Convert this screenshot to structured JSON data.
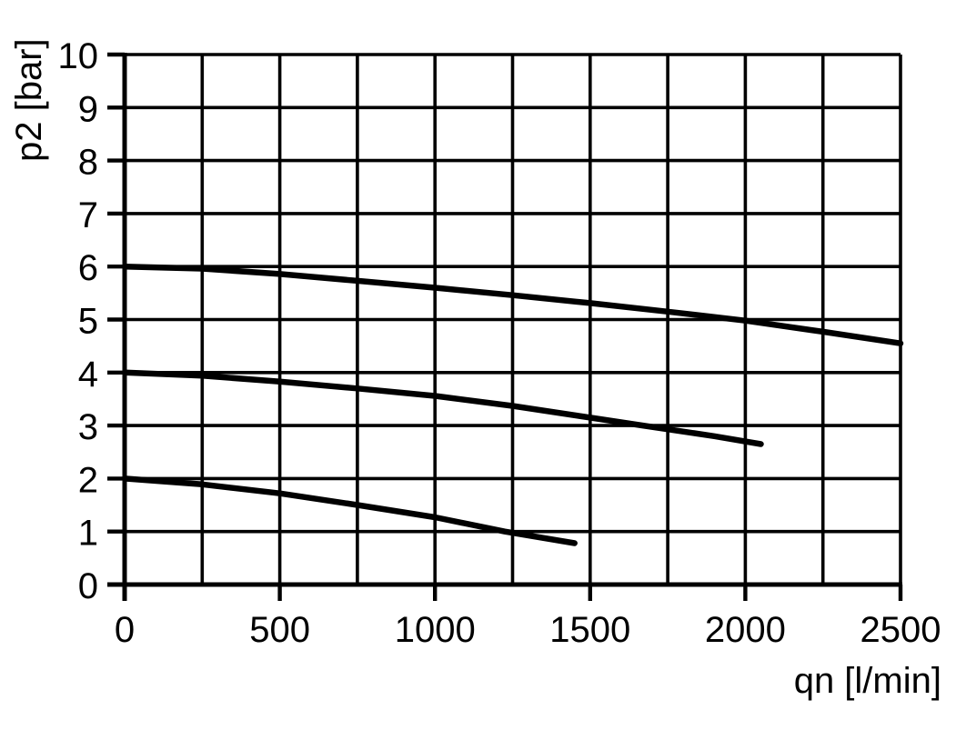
{
  "chart_data": {
    "type": "line",
    "title": "",
    "xlabel": "qn [l/min]",
    "ylabel": "p2 [bar]",
    "xlim": [
      0,
      2500
    ],
    "ylim": [
      0,
      10
    ],
    "grid": true,
    "x_grid_step": 250,
    "y_grid_step": 1,
    "x_tick_step": 500,
    "y_tick_step": 1,
    "x_tick_labels": [
      "0",
      "500",
      "1000",
      "1500",
      "2000",
      "2500"
    ],
    "y_tick_labels": [
      "0",
      "1",
      "2",
      "3",
      "4",
      "5",
      "6",
      "7",
      "8",
      "9",
      "10"
    ],
    "legend": "none",
    "colors": {
      "curve": "#000000",
      "grid": "#000000",
      "text": "#000000",
      "background": "#ffffff"
    },
    "series": [
      {
        "name": "upper-curve",
        "points": [
          [
            0,
            6.0
          ],
          [
            250,
            5.96
          ],
          [
            500,
            5.86
          ],
          [
            750,
            5.73
          ],
          [
            1000,
            5.6
          ],
          [
            1250,
            5.46
          ],
          [
            1500,
            5.31
          ],
          [
            1750,
            5.15
          ],
          [
            2000,
            4.98
          ],
          [
            2250,
            4.77
          ],
          [
            2500,
            4.55
          ]
        ]
      },
      {
        "name": "middle-curve",
        "points": [
          [
            0,
            4.0
          ],
          [
            250,
            3.94
          ],
          [
            500,
            3.83
          ],
          [
            750,
            3.7
          ],
          [
            1000,
            3.56
          ],
          [
            1250,
            3.37
          ],
          [
            1500,
            3.15
          ],
          [
            1670,
            3.0
          ],
          [
            1900,
            2.8
          ],
          [
            2050,
            2.65
          ]
        ]
      },
      {
        "name": "lower-curve",
        "points": [
          [
            0,
            2.0
          ],
          [
            250,
            1.89
          ],
          [
            500,
            1.72
          ],
          [
            750,
            1.5
          ],
          [
            1000,
            1.27
          ],
          [
            1225,
            1.0
          ],
          [
            1450,
            0.78
          ]
        ]
      }
    ]
  }
}
